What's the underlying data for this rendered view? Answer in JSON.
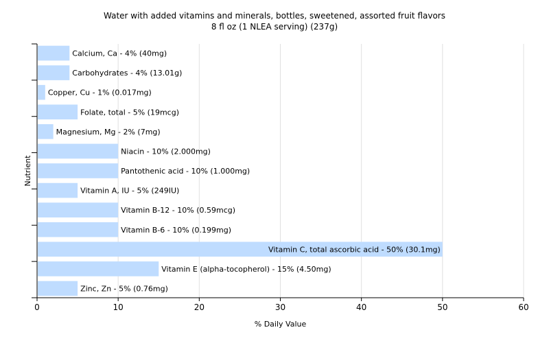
{
  "chart_data": {
    "type": "bar",
    "orientation": "horizontal",
    "title": "Water with added vitamins and minerals, bottles, sweetened, assorted fruit flavors",
    "subtitle": "8 fl oz (1 NLEA serving) (237g)",
    "xlabel": "% Daily Value",
    "ylabel": "Nutrient",
    "xlim": [
      0,
      60
    ],
    "xticks": [
      0,
      10,
      20,
      30,
      40,
      50,
      60
    ],
    "grid": "vertical",
    "legend": "none",
    "colors": {
      "bar": "#bfdcff",
      "grid": "#e0e0e0",
      "axis": "#000000"
    },
    "categories": [
      "Calcium, Ca",
      "Carbohydrates",
      "Copper, Cu",
      "Folate, total",
      "Magnesium, Mg",
      "Niacin",
      "Pantothenic acid",
      "Vitamin A, IU",
      "Vitamin B-12",
      "Vitamin B-6",
      "Vitamin C, total ascorbic acid",
      "Vitamin E (alpha-tocopherol)",
      "Zinc, Zn"
    ],
    "values": [
      4,
      4,
      1,
      5,
      2,
      10,
      10,
      5,
      10,
      10,
      50,
      15,
      5
    ],
    "labels": [
      "Calcium, Ca - 4% (40mg)",
      "Carbohydrates - 4% (13.01g)",
      "Copper, Cu - 1% (0.017mg)",
      "Folate, total - 5% (19mcg)",
      "Magnesium, Mg - 2% (7mg)",
      "Niacin - 10% (2.000mg)",
      "Pantothenic acid - 10% (1.000mg)",
      "Vitamin A, IU - 5% (249IU)",
      "Vitamin B-12 - 10% (0.59mcg)",
      "Vitamin B-6 - 10% (0.199mg)",
      "Vitamin C, total ascorbic acid - 50% (30.1mg)",
      "Vitamin E (alpha-tocopherol) - 15% (4.50mg)",
      "Zinc, Zn - 5% (0.76mg)"
    ]
  }
}
